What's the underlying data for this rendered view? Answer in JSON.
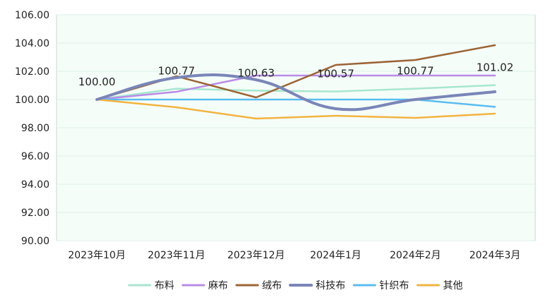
{
  "chart_data": {
    "type": "line",
    "title": "",
    "xlabel": "",
    "ylabel": "",
    "categories": [
      "2023年10月",
      "2023年11月",
      "2023年12月",
      "2024年1月",
      "2024年2月",
      "2024年3月"
    ],
    "ylim": [
      90,
      106
    ],
    "yticks": [
      "90.00",
      "92.00",
      "94.00",
      "96.00",
      "98.00",
      "100.00",
      "102.00",
      "104.00",
      "106.00"
    ],
    "grid": "horizontal",
    "legend_position": "bottom",
    "series": [
      {
        "name": "布料",
        "color": "#a7e6cf",
        "width": 2.5,
        "smooth": false,
        "values": [
          100.0,
          100.77,
          100.63,
          100.57,
          100.77,
          101.02
        ]
      },
      {
        "name": "麻布",
        "color": "#b98ce6",
        "width": 2.5,
        "smooth": false,
        "values": [
          100.0,
          100.55,
          101.7,
          101.7,
          101.7,
          101.7
        ]
      },
      {
        "name": "绒布",
        "color": "#9c6436",
        "width": 2.5,
        "smooth": false,
        "values": [
          100.0,
          101.65,
          100.15,
          102.45,
          102.8,
          103.85
        ]
      },
      {
        "name": "科技布",
        "color": "#7a85b8",
        "width": 4,
        "smooth": true,
        "values": [
          100.0,
          101.55,
          101.4,
          99.35,
          100.0,
          100.55
        ]
      },
      {
        "name": "针织布",
        "color": "#5bbcf0",
        "width": 2.5,
        "smooth": false,
        "values": [
          100.0,
          100.0,
          100.0,
          100.0,
          100.0,
          99.48
        ]
      },
      {
        "name": "其他",
        "color": "#f2b440",
        "width": 2.5,
        "smooth": false,
        "values": [
          100.0,
          99.45,
          98.65,
          98.85,
          98.7,
          99.0
        ]
      }
    ],
    "data_labels": [
      "100.00",
      "100.77",
      "100.63",
      "100.57",
      "100.77",
      "101.02"
    ]
  },
  "colors": {
    "plot_background": "#f5fdf9",
    "gridline": "#e0eee8",
    "axis": "#c8d8d0"
  }
}
